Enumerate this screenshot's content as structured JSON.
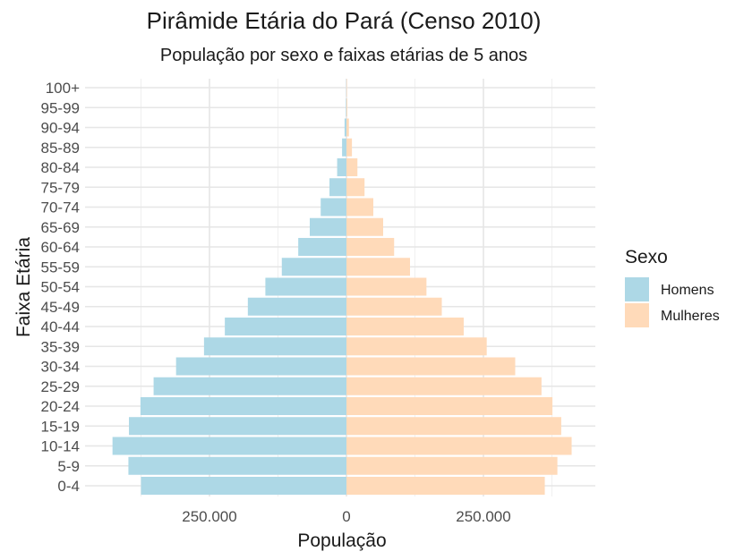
{
  "chart_data": {
    "type": "bar",
    "orientation": "horizontal-diverging",
    "title": "Pirâmide Etária do Pará (Censo 2010)",
    "subtitle": "População por sexo e faixas etárias de 5 anos",
    "xlabel": "População",
    "ylabel": "Faixa Etária",
    "xlim": [
      -470000,
      450000
    ],
    "x_ticks": [
      -250000,
      0,
      250000
    ],
    "x_tick_labels": [
      "250.000",
      "0",
      "250.000"
    ],
    "grid": true,
    "legend_position": "right",
    "legend_title": "Sexo",
    "categories": [
      "0-4",
      "5-9",
      "10-14",
      "15-19",
      "20-24",
      "25-29",
      "30-34",
      "35-39",
      "40-44",
      "45-49",
      "50-54",
      "55-59",
      "60-64",
      "65-69",
      "70-74",
      "75-79",
      "80-84",
      "85-89",
      "90-94",
      "95-99",
      "100+"
    ],
    "series": [
      {
        "name": "Homens",
        "color": "#ADD8E6",
        "values": [
          375000,
          398000,
          427000,
          397000,
          376000,
          352000,
          311000,
          260000,
          222000,
          180000,
          148000,
          118000,
          88000,
          67000,
          47000,
          31000,
          17000,
          8000,
          3500,
          1000,
          300
        ]
      },
      {
        "name": "Mulheres",
        "color": "#FFDAB9",
        "values": [
          362000,
          385000,
          411000,
          392000,
          376000,
          356000,
          308000,
          256000,
          214000,
          174000,
          146000,
          116000,
          87000,
          67000,
          49000,
          33000,
          20000,
          10000,
          4500,
          1500,
          500
        ]
      }
    ]
  }
}
